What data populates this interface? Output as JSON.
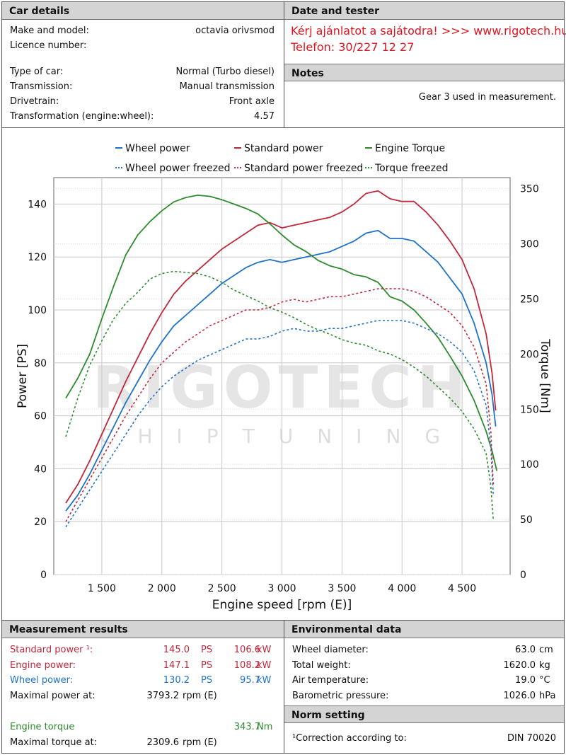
{
  "car_details": {
    "header": "Car details",
    "rows": [
      {
        "label": "Make and model:",
        "value": "octavia orivsmod"
      },
      {
        "label": "Licence number:",
        "value": ""
      },
      {
        "label": "Type of car:",
        "value": "Normal (Turbo diesel)"
      },
      {
        "label": "Transmission:",
        "value": "Manual transmission"
      },
      {
        "label": "Drivetrain:",
        "value": "Front axle"
      },
      {
        "label": "Transformation (engine:wheel):",
        "value": "4.57"
      }
    ]
  },
  "date_tester": {
    "header": "Date and tester",
    "line1": "Kérj ajánlatot a sajátodra!  >>>  www.rigotech.hu",
    "line2": "Telefon: 30/227 12 27"
  },
  "notes": {
    "header": "Notes",
    "text": "Gear 3 used in measurement."
  },
  "watermark": {
    "brand": "RIGOTECH",
    "sub": "CHIPTUNING"
  },
  "colors": {
    "wheel": "#1f72c8",
    "standard": "#c0283c",
    "torque": "#2e8b2e"
  },
  "chart_data": {
    "type": "line",
    "xlabel": "Engine speed [rpm (E)]",
    "ylabel": "Power [PS]",
    "y2label": "Torque [Nm]",
    "xlim": [
      1100,
      4900
    ],
    "ylim": [
      0,
      150
    ],
    "y2lim": [
      0,
      360
    ],
    "xticks": [
      {
        "v": 1500,
        "t": "1 500"
      },
      {
        "v": 2000,
        "t": "2 000"
      },
      {
        "v": 2500,
        "t": "2 500"
      },
      {
        "v": 3000,
        "t": "3 000"
      },
      {
        "v": 3500,
        "t": "3 500"
      },
      {
        "v": 4000,
        "t": "4 000"
      },
      {
        "v": 4500,
        "t": "4 500"
      }
    ],
    "yticks": [
      0,
      20,
      40,
      60,
      80,
      100,
      120,
      140
    ],
    "y2ticks": [
      0,
      50,
      100,
      150,
      200,
      250,
      300,
      350
    ],
    "grid": true,
    "legend_position": "top",
    "series": [
      {
        "name": "Wheel power",
        "axis": "left",
        "color": "#1f72c8",
        "dash": false,
        "x": [
          1200,
          1300,
          1400,
          1500,
          1600,
          1700,
          1800,
          1900,
          2000,
          2100,
          2200,
          2300,
          2400,
          2500,
          2600,
          2700,
          2800,
          2900,
          3000,
          3100,
          3200,
          3300,
          3400,
          3500,
          3600,
          3700,
          3800,
          3900,
          4000,
          4100,
          4200,
          4300,
          4400,
          4500,
          4600,
          4700,
          4750,
          4780
        ],
        "y": [
          24,
          30,
          38,
          47,
          56,
          65,
          73,
          81,
          88,
          94,
          98,
          102,
          106,
          110,
          113,
          116,
          118,
          119,
          118,
          119,
          120,
          121,
          122,
          124,
          126,
          129,
          130,
          127,
          127,
          126,
          122,
          118,
          112,
          106,
          95,
          80,
          68,
          56
        ]
      },
      {
        "name": "Standard power",
        "axis": "left",
        "color": "#c0283c",
        "dash": false,
        "x": [
          1200,
          1300,
          1400,
          1500,
          1600,
          1700,
          1800,
          1900,
          2000,
          2100,
          2200,
          2300,
          2400,
          2500,
          2600,
          2700,
          2800,
          2900,
          3000,
          3100,
          3200,
          3300,
          3400,
          3500,
          3600,
          3700,
          3800,
          3900,
          4000,
          4100,
          4200,
          4300,
          4400,
          4500,
          4600,
          4700,
          4750,
          4780
        ],
        "y": [
          27,
          34,
          43,
          53,
          63,
          73,
          82,
          91,
          99,
          106,
          111,
          115,
          119,
          123,
          126,
          129,
          132,
          133,
          131,
          132,
          133,
          134,
          135,
          137,
          140,
          144,
          145,
          142,
          141,
          141,
          137,
          132,
          126,
          119,
          108,
          91,
          76,
          62
        ]
      },
      {
        "name": "Engine Torque",
        "axis": "right",
        "color": "#2e8b2e",
        "dash": false,
        "x": [
          1200,
          1300,
          1400,
          1500,
          1600,
          1700,
          1800,
          1900,
          2000,
          2100,
          2200,
          2300,
          2400,
          2500,
          2600,
          2700,
          2800,
          2900,
          3000,
          3100,
          3200,
          3300,
          3400,
          3500,
          3600,
          3700,
          3800,
          3900,
          4000,
          4100,
          4200,
          4300,
          4400,
          4500,
          4600,
          4700,
          4750,
          4790
        ],
        "y": [
          160,
          178,
          200,
          232,
          262,
          290,
          308,
          320,
          330,
          338,
          342,
          344,
          343,
          340,
          336,
          332,
          327,
          318,
          308,
          299,
          293,
          285,
          280,
          277,
          272,
          270,
          265,
          252,
          248,
          240,
          228,
          215,
          198,
          180,
          158,
          130,
          112,
          94
        ]
      },
      {
        "name": "Wheel power freezed",
        "axis": "left",
        "color": "#1f72c8",
        "dash": true,
        "x": [
          1200,
          1300,
          1400,
          1500,
          1600,
          1700,
          1800,
          1900,
          2000,
          2100,
          2200,
          2300,
          2400,
          2500,
          2600,
          2700,
          2800,
          2900,
          3000,
          3100,
          3200,
          3300,
          3400,
          3500,
          3600,
          3700,
          3800,
          3900,
          4000,
          4100,
          4200,
          4300,
          4400,
          4500,
          4600,
          4700,
          4740,
          4760
        ],
        "y": [
          18,
          25,
          32,
          39,
          46,
          53,
          60,
          66,
          71,
          75,
          78,
          81,
          83,
          85,
          87,
          89,
          89,
          90,
          92,
          93,
          92,
          92,
          93,
          93,
          94,
          95,
          96,
          96,
          96,
          95,
          93,
          91,
          88,
          84,
          77,
          64,
          48,
          30
        ]
      },
      {
        "name": "Standard power freezed",
        "axis": "left",
        "color": "#c0283c",
        "dash": true,
        "x": [
          1200,
          1300,
          1400,
          1500,
          1600,
          1700,
          1800,
          1900,
          2000,
          2100,
          2200,
          2300,
          2400,
          2500,
          2600,
          2700,
          2800,
          2900,
          3000,
          3100,
          3200,
          3300,
          3400,
          3500,
          3600,
          3700,
          3800,
          3900,
          4000,
          4100,
          4200,
          4300,
          4400,
          4500,
          4600,
          4700,
          4740,
          4760
        ],
        "y": [
          20,
          28,
          36,
          44,
          52,
          60,
          67,
          74,
          80,
          84,
          88,
          91,
          94,
          96,
          98,
          100,
          100,
          101,
          103,
          104,
          103,
          104,
          105,
          105,
          106,
          107,
          108,
          108,
          108,
          107,
          105,
          102,
          99,
          94,
          86,
          72,
          54,
          34
        ]
      },
      {
        "name": "Torque freezed",
        "axis": "right",
        "color": "#2e8b2e",
        "dash": true,
        "x": [
          1200,
          1300,
          1400,
          1500,
          1600,
          1700,
          1800,
          1900,
          2000,
          2100,
          2200,
          2300,
          2400,
          2500,
          2600,
          2700,
          2800,
          2900,
          3000,
          3100,
          3200,
          3300,
          3400,
          3500,
          3600,
          3700,
          3800,
          3900,
          4000,
          4100,
          4200,
          4300,
          4400,
          4500,
          4600,
          4700,
          4740,
          4760
        ],
        "y": [
          125,
          160,
          190,
          212,
          232,
          246,
          256,
          268,
          273,
          275,
          274,
          273,
          270,
          265,
          258,
          253,
          248,
          242,
          238,
          233,
          227,
          222,
          218,
          213,
          210,
          208,
          203,
          200,
          195,
          188,
          180,
          170,
          160,
          148,
          132,
          110,
          80,
          50
        ]
      }
    ]
  },
  "measurement": {
    "header": "Measurement results",
    "standard_power": {
      "label": "Standard power ¹:",
      "ps": "145.0",
      "ps_unit": "PS",
      "kw": "106.6",
      "kw_unit": "kW"
    },
    "engine_power": {
      "label": "Engine power:",
      "ps": "147.1",
      "ps_unit": "PS",
      "kw": "108.2",
      "kw_unit": "kW"
    },
    "wheel_power": {
      "label": "Wheel power:",
      "ps": "130.2",
      "ps_unit": "PS",
      "kw": "95.7",
      "kw_unit": "kW"
    },
    "max_power_at": {
      "label": "Maximal power at:",
      "value": "3793.2",
      "unit": "rpm (E)"
    },
    "engine_torque": {
      "label": "Engine torque",
      "value": "343.7",
      "unit": "Nm"
    },
    "max_torque_at": {
      "label": "Maximal torque at:",
      "value": "2309.6",
      "unit": "rpm (E)"
    }
  },
  "environment": {
    "header": "Environmental data",
    "rows": [
      {
        "label": "Wheel diameter:",
        "value": "63.0",
        "unit": "cm"
      },
      {
        "label": "Total weight:",
        "value": "1620.0",
        "unit": "kg"
      },
      {
        "label": "Air temperature:",
        "value": "19.0",
        "unit": "°C"
      },
      {
        "label": "Barometric pressure:",
        "value": "1026.0",
        "unit": "hPa"
      }
    ]
  },
  "norm": {
    "header": "Norm setting",
    "label": "¹Correction according to:",
    "value": "DIN 70020"
  }
}
